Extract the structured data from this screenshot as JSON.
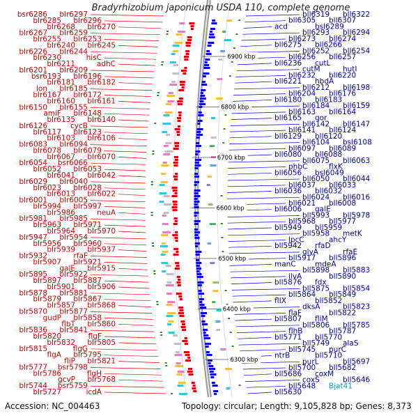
{
  "title": "Bradyrhizobium japonicum USDA 110, complete genome",
  "footer": {
    "accession": "Accession: NC_004463",
    "topology": "Topology: circular; Length: 9,105,828 bp; Genes: 8,373"
  },
  "colors": {
    "minus_strand": "#e00000",
    "plus_strand": "#0000dd",
    "highlight": "#00a0d0",
    "backbone": "#888888"
  },
  "kbp_marks": [
    "6900 kbp",
    "6800 kbp",
    "6700 kbp",
    "6600 kbp",
    "6500 kbp",
    "6400 kbp",
    "6300 kbp"
  ],
  "left_labels": [
    "blr6297",
    "bsr6286",
    "blr6296",
    "blr6285",
    "blr6270",
    "blr6268",
    "blr6259",
    "blr6267",
    "blr6253",
    "blr6255",
    "blr6245",
    "blr6240",
    "blr6244",
    "blr6226",
    "hisC",
    "blr6230",
    "adhC",
    "blr6211",
    "blr6209",
    "blr6201",
    "blr6196",
    "bsr6193",
    "blr6182",
    "blr6181",
    "blr6185",
    "lon",
    "blr6172",
    "blr6167",
    "blr6161",
    "blr6160",
    "blr6155",
    "blr6150",
    "blr6148",
    "amiF",
    "blr6140",
    "blr6135",
    "cycB",
    "blr6126",
    "blr6123",
    "blr6117",
    "blr6106",
    "blr6103",
    "blr6094",
    "blr6083",
    "blr6079",
    "blr6078",
    "blr6070",
    "blr6067",
    "bsr6066",
    "blr6054",
    "blr6053",
    "blr6052",
    "blr6042",
    "blr6041",
    "blr6040",
    "blr6029",
    "blr6028",
    "blr6023",
    "blr6022",
    "blr6013",
    "blr6005",
    "blr6001",
    "blr5997",
    "blr5994",
    "neuA",
    "blr5986",
    "blr5985",
    "blr5981",
    "blr5971",
    "blr5963",
    "blr5970",
    "blr5964",
    "blr5954",
    "blr5947",
    "blr5960",
    "blr5956",
    "blr5937",
    "blr5939",
    "rfaF",
    "blr5932",
    "blr5921",
    "blr5907",
    "blr5915",
    "galE",
    "blr5922",
    "blr5895",
    "blr5887",
    "blr5897",
    "blr5906",
    "blr5901",
    "blr5881",
    "blr5878",
    "blr5867",
    "blr5879",
    "blr5868",
    "blr5857",
    "blr5877",
    "blr5870",
    "blr5858",
    "gudP",
    "blr5860",
    "flbT",
    "blr5841",
    "blr5836",
    "flgF",
    "blr5820",
    "blr5805",
    "blr5832",
    "flgG",
    "blr5815",
    "blr5795",
    "flgA",
    "blr5821",
    "fliP",
    "bsr5798",
    "blr5777",
    "flgH",
    "blr5786",
    "blr5768",
    "gcvP",
    "bsr5759",
    "blr5744",
    "icdA",
    "blr5727"
  ],
  "right_labels": [
    "bll6319",
    "bll6322",
    "bll6305",
    "bll6307",
    "acd",
    "bsl6289",
    "bll6293",
    "bll6294",
    "bll6273",
    "bll6274",
    "bll6275",
    "bll6266",
    "bll6252",
    "bll6254",
    "bll6256",
    "bll6257",
    "bll6236",
    "cutL",
    "cutM",
    "hutI",
    "bll6232",
    "bll6220",
    "bll6221",
    "hbdA",
    "bll6212",
    "bll6198",
    "bll6204",
    "bll6176",
    "bll6180",
    "bll6183",
    "bll6184",
    "bll6159",
    "bll6163",
    "bll6164",
    "bll6165",
    "qor",
    "bll6142",
    "bll6147",
    "bll6141",
    "bll6124",
    "bll6129",
    "bll6120",
    "bll6104",
    "bsl6108",
    "bll6097",
    "bll6089",
    "bll6080",
    "bll6088",
    "bll6075",
    "bll6063",
    "phbC",
    "flxK",
    "bll6056",
    "bsl6049",
    "bll6050",
    "bll6044",
    "bll6037",
    "bll6033",
    "bll6036",
    "bll6032",
    "bll6024",
    "bll6016",
    "bll6021",
    "bll6008",
    "bll6006",
    "galE",
    "bll5993",
    "bll5978",
    "bll5968",
    "bll5977",
    "bll5949",
    "bll5959",
    "bll5958",
    "metK",
    "lpcC",
    "ahcY",
    "bll5942",
    "rfaD",
    "glyA",
    "rfaE",
    "bll5917",
    "bll5896",
    "manC",
    "mdeA",
    "bll5898",
    "bll5883",
    "ilvA",
    "bll5890",
    "bll5876",
    "fdx",
    "bll5875",
    "bll5854",
    "bll5864",
    "bll5849",
    "flIX",
    "bll5852",
    "dksA",
    "bll5823",
    "flaF",
    "bll5822",
    "bll5807",
    "fliM",
    "bll5806",
    "bll5785",
    "flhB",
    "bll5787",
    "bll5771",
    "bll5770",
    "bll5749",
    "alaS",
    "bll5745",
    "purC",
    "ntrB",
    "bll5710",
    "purL",
    "bll5697",
    "bll5700",
    "bll5682",
    "bll5686",
    "coxM",
    "coxS",
    "bll5646",
    "bll5648",
    "Bjat41",
    "bll5630"
  ]
}
